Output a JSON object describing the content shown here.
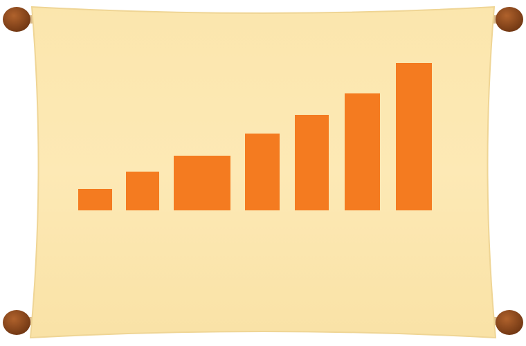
{
  "chart_data": {
    "type": "bar",
    "categories": [
      null,
      null,
      null,
      null,
      null,
      null,
      null
    ],
    "values": [
      31,
      56,
      79,
      111,
      138,
      169,
      213
    ],
    "color": "#f47b20",
    "ylim": [
      0,
      220
    ]
  }
}
